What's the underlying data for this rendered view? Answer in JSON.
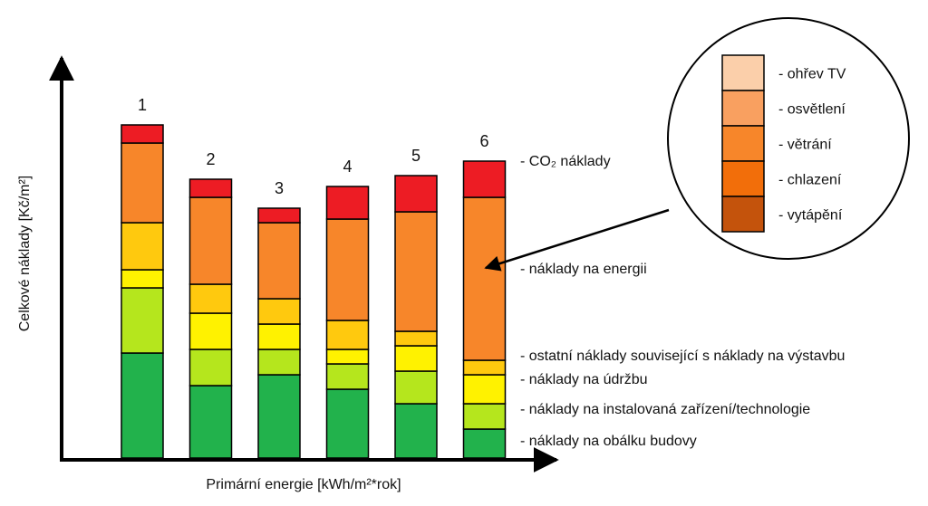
{
  "chart_data": {
    "type": "bar",
    "stacked": true,
    "xlabel": "Primární energie [kWh/m²*rok]",
    "ylabel": "Celkové náklady [Kč/m²]",
    "categories": [
      "1",
      "2",
      "3",
      "4",
      "5",
      "6"
    ],
    "ylim": [
      0,
      100
    ],
    "grid": false,
    "legend": "right",
    "series": [
      {
        "name": "- náklady na obálku budovy",
        "color": "#22B24C",
        "values": [
          29,
          20,
          23,
          19,
          15,
          8
        ]
      },
      {
        "name": "- náklady na instalovaná zařízení/technologie",
        "color": "#B5E61D",
        "values": [
          18,
          10,
          7,
          7,
          9,
          7
        ]
      },
      {
        "name": "- náklady na údržbu",
        "color": "#FFF200",
        "values": [
          5,
          10,
          7,
          4,
          7,
          8
        ]
      },
      {
        "name": "- ostatní náklady související s náklady na výstavbu",
        "color": "#FFC90E",
        "values": [
          13,
          8,
          7,
          8,
          4,
          4
        ]
      },
      {
        "name": "- náklady na energii",
        "color": "#F7862A",
        "values": [
          22,
          24,
          21,
          28,
          33,
          45
        ]
      },
      {
        "name": "- CO₂ náklady",
        "color": "#ED1C24",
        "values": [
          5,
          5,
          4,
          9,
          10,
          10
        ]
      }
    ],
    "energy_breakdown_legend": [
      {
        "name": "- ohřev TV",
        "color": "#FBCFAA"
      },
      {
        "name": "- osvětlení",
        "color": "#F9A060"
      },
      {
        "name": "- větrání",
        "color": "#F7862A"
      },
      {
        "name": "- chlazení",
        "color": "#F26E0A"
      },
      {
        "name": "- vytápění",
        "color": "#C4530C"
      }
    ]
  }
}
